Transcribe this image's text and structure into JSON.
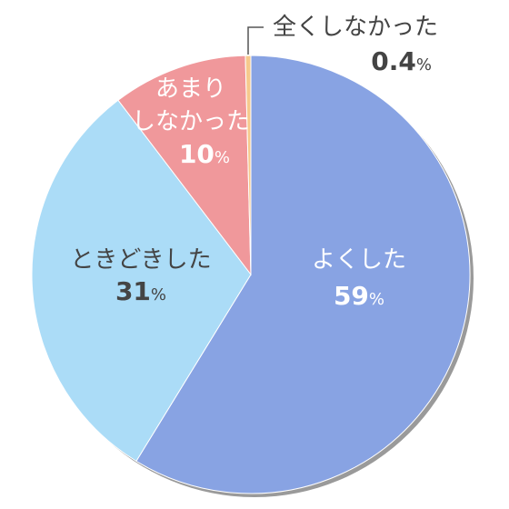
{
  "chart_data": {
    "type": "pie",
    "categories": [
      "よくした",
      "ときどきした",
      "あまり\nしなかった",
      "全くしなかった"
    ],
    "values": [
      59,
      31,
      10,
      0.4
    ],
    "value_labels": [
      "59%",
      "31%",
      "10%",
      "0.4%"
    ],
    "colors": [
      "#88a3e3",
      "#abdcf7",
      "#f0989b",
      "#f6c98c"
    ]
  }
}
